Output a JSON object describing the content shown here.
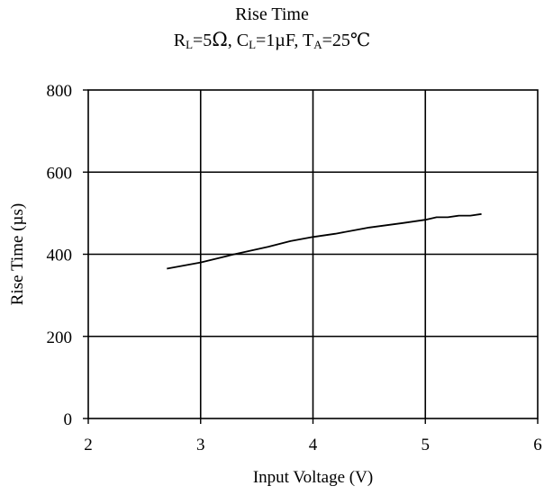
{
  "chart_data": {
    "type": "line",
    "title": "Rise Time",
    "subtitle": {
      "r_prefix": "R",
      "r_sub": "L",
      "r_value": "=5",
      "r_unit": "Ω",
      "c_prefix": ", C",
      "c_sub": "L",
      "c_value": "=1µF",
      "t_prefix": ", T",
      "t_sub": "A",
      "t_value": "=25℃"
    },
    "xlabel": "Input Voltage (V)",
    "ylabel": "Rise Time (µs)",
    "xlim": [
      2,
      6
    ],
    "ylim": [
      0,
      800
    ],
    "xticks": [
      "2",
      "3",
      "4",
      "5",
      "6"
    ],
    "yticks": [
      "0",
      "200",
      "400",
      "600",
      "800"
    ],
    "grid": true,
    "series": [
      {
        "x": [
          2.7,
          3.0,
          3.3,
          3.6,
          3.8,
          4.0,
          4.2,
          4.5,
          4.8,
          5.0,
          5.1,
          5.2,
          5.3,
          5.4,
          5.5
        ],
        "y": [
          365,
          380,
          400,
          418,
          432,
          442,
          450,
          465,
          476,
          484,
          490,
          490,
          494,
          494,
          498
        ]
      }
    ]
  }
}
